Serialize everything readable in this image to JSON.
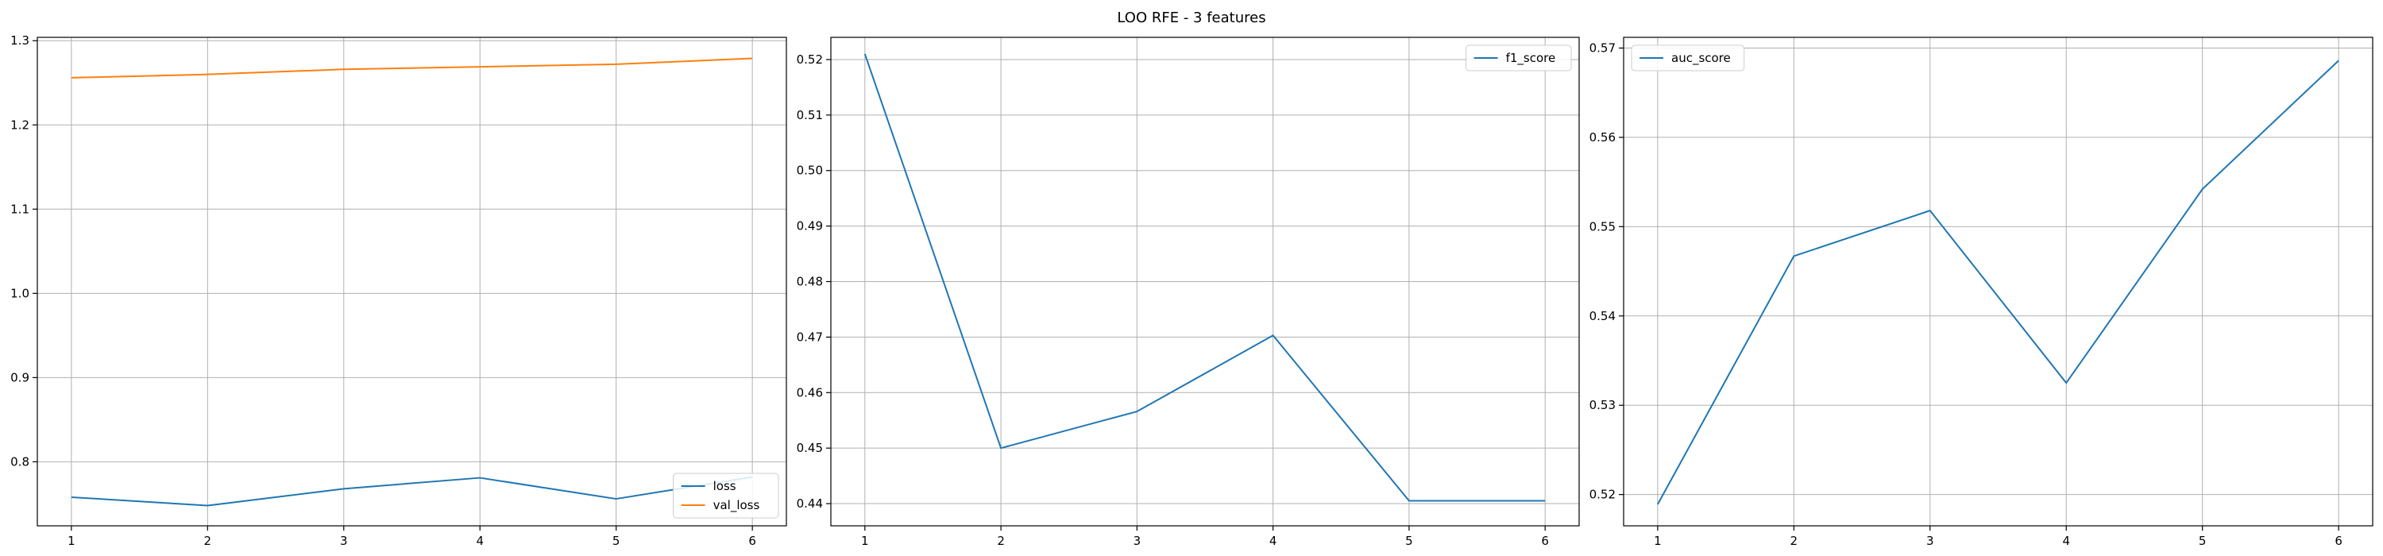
{
  "figure": {
    "title": "LOO RFE - 3 features"
  },
  "colors": {
    "series_blue": "#1f77b4",
    "series_orange": "#ff7f0e",
    "grid": "#b0b0b0",
    "axis": "#000000"
  },
  "chart_data": [
    {
      "type": "line",
      "x": [
        1,
        2,
        3,
        4,
        5,
        6
      ],
      "xlim": [
        0.75,
        6.25
      ],
      "xticks": [
        1,
        2,
        3,
        4,
        5,
        6
      ],
      "ylim": [
        0.724,
        1.304
      ],
      "yticks": [
        "0.8",
        "0.9",
        "1.0",
        "1.1",
        "1.2",
        "1.3"
      ],
      "grid": true,
      "legend": "lower-right",
      "series": [
        {
          "name": "loss",
          "color": "#1f77b4",
          "values": [
            0.758,
            0.748,
            0.768,
            0.781,
            0.756,
            0.782
          ]
        },
        {
          "name": "val_loss",
          "color": "#ff7f0e",
          "values": [
            1.256,
            1.26,
            1.266,
            1.269,
            1.272,
            1.279
          ]
        }
      ]
    },
    {
      "type": "line",
      "x": [
        1,
        2,
        3,
        4,
        5,
        6
      ],
      "xlim": [
        0.75,
        6.25
      ],
      "xticks": [
        1,
        2,
        3,
        4,
        5,
        6
      ],
      "ylim": [
        0.436,
        0.524
      ],
      "yticks": [
        "0.44",
        "0.45",
        "0.46",
        "0.47",
        "0.48",
        "0.49",
        "0.50",
        "0.51",
        "0.52"
      ],
      "grid": true,
      "legend": "upper-right",
      "series": [
        {
          "name": "f1_score",
          "color": "#1f77b4",
          "values": [
            0.521,
            0.45,
            0.4566,
            0.4703,
            0.4405,
            0.4405
          ]
        }
      ]
    },
    {
      "type": "line",
      "x": [
        1,
        2,
        3,
        4,
        5,
        6
      ],
      "xlim": [
        0.75,
        6.25
      ],
      "xticks": [
        1,
        2,
        3,
        4,
        5,
        6
      ],
      "ylim": [
        0.5165,
        0.5712
      ],
      "yticks": [
        "0.52",
        "0.53",
        "0.54",
        "0.55",
        "0.56",
        "0.57"
      ],
      "grid": true,
      "legend": "upper-left",
      "series": [
        {
          "name": "auc_score",
          "color": "#1f77b4",
          "values": [
            0.5189,
            0.5467,
            0.5518,
            0.5325,
            0.5542,
            0.5686
          ]
        }
      ]
    }
  ]
}
